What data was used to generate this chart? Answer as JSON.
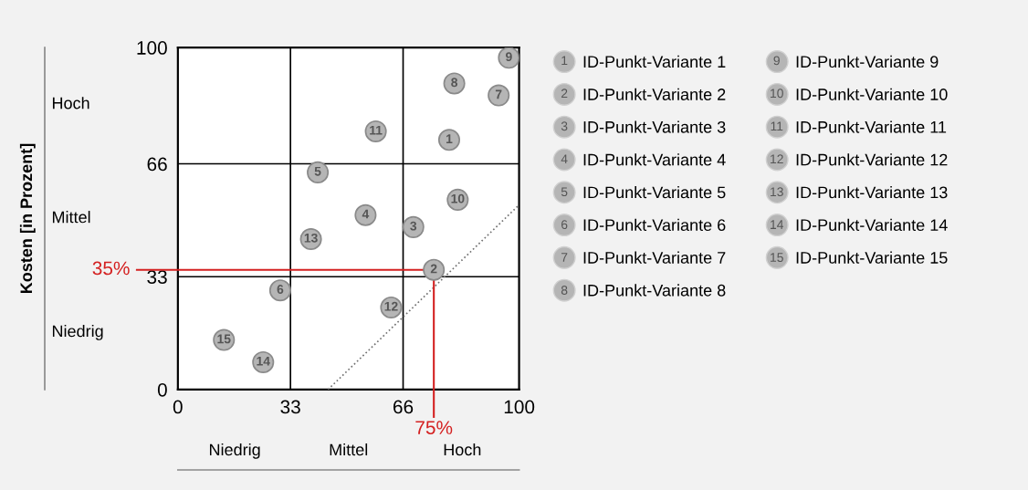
{
  "chart_data": {
    "type": "scatter",
    "xlim": [
      0,
      100
    ],
    "ylim": [
      0,
      100
    ],
    "xticks": [
      0,
      33,
      66,
      100
    ],
    "yticks": [
      0,
      33,
      66,
      100
    ],
    "grid": true,
    "legend": "right",
    "marker": "circle",
    "series": [
      {
        "name": "ID-Punkt-Variante 1",
        "color": "#b5b5b5",
        "x": [
          79.5
        ],
        "values": [
          73
        ]
      },
      {
        "name": "ID-Punkt-Variante 2",
        "color": "#b5b5b5",
        "x": [
          75
        ],
        "values": [
          35
        ]
      },
      {
        "name": "ID-Punkt-Variante 3",
        "color": "#b5b5b5",
        "x": [
          69
        ],
        "values": [
          47.5
        ]
      },
      {
        "name": "ID-Punkt-Variante 4",
        "color": "#b5b5b5",
        "x": [
          55
        ],
        "values": [
          51
        ]
      },
      {
        "name": "ID-Punkt-Variante 5",
        "color": "#b5b5b5",
        "x": [
          41
        ],
        "values": [
          63.5
        ]
      },
      {
        "name": "ID-Punkt-Variante 6",
        "color": "#b5b5b5",
        "x": [
          30
        ],
        "values": [
          29
        ]
      },
      {
        "name": "ID-Punkt-Variante 7",
        "color": "#b5b5b5",
        "x": [
          94
        ],
        "values": [
          86
        ]
      },
      {
        "name": "ID-Punkt-Variante 8",
        "color": "#b5b5b5",
        "x": [
          81
        ],
        "values": [
          89.5
        ]
      },
      {
        "name": "ID-Punkt-Variante 9",
        "color": "#b5b5b5",
        "x": [
          97
        ],
        "values": [
          97
        ]
      },
      {
        "name": "ID-Punkt-Variante 10",
        "color": "#b5b5b5",
        "x": [
          82
        ],
        "values": [
          55.5
        ]
      },
      {
        "name": "ID-Punkt-Variante 11",
        "color": "#b5b5b5",
        "x": [
          58
        ],
        "values": [
          75.5
        ]
      },
      {
        "name": "ID-Punkt-Variante 12",
        "color": "#b5b5b5",
        "x": [
          62.5
        ],
        "values": [
          24
        ]
      },
      {
        "name": "ID-Punkt-Variante 13",
        "color": "#b5b5b5",
        "x": [
          39
        ],
        "values": [
          44
        ]
      },
      {
        "name": "ID-Punkt-Variante 14",
        "color": "#b5b5b5",
        "x": [
          25
        ],
        "values": [
          8
        ]
      },
      {
        "name": "ID-Punkt-Variante 15",
        "color": "#b5b5b5",
        "x": [
          13.5
        ],
        "values": [
          14.5
        ]
      },
      {
        "type": "line",
        "color": "#707070",
        "line_style": "dotted",
        "marker": "none",
        "x": [
          44,
          100
        ],
        "values": [
          0,
          54
        ]
      }
    ],
    "annotations": [
      {
        "text": "1",
        "x": 79.5,
        "y": 73
      },
      {
        "text": "2",
        "x": 75,
        "y": 35
      },
      {
        "text": "3",
        "x": 69,
        "y": 47.5
      },
      {
        "text": "4",
        "x": 55,
        "y": 51
      },
      {
        "text": "5",
        "x": 41,
        "y": 63.5
      },
      {
        "text": "6",
        "x": 30,
        "y": 29
      },
      {
        "text": "7",
        "x": 94,
        "y": 86
      },
      {
        "text": "8",
        "x": 81,
        "y": 89.5
      },
      {
        "text": "9",
        "x": 97,
        "y": 97
      },
      {
        "text": "10",
        "x": 82,
        "y": 55.5
      },
      {
        "text": "11",
        "x": 58,
        "y": 75.5
      },
      {
        "text": "12",
        "x": 62.5,
        "y": 24
      },
      {
        "text": "13",
        "x": 39,
        "y": 44
      },
      {
        "text": "14",
        "x": 25,
        "y": 8
      },
      {
        "text": "15",
        "x": 13.5,
        "y": 14.5
      },
      "Niedrig",
      "Mittel",
      "Hoch",
      "Niedrig",
      "Mittel",
      "Hoch",
      "Kosten [in Prozent]"
    ],
    "ref_lines": [
      {
        "axis": "y",
        "value": 35,
        "label": "35%",
        "color": "#d42020"
      },
      {
        "axis": "x",
        "value": 75,
        "label": "75%",
        "color": "#d42020"
      }
    ]
  }
}
